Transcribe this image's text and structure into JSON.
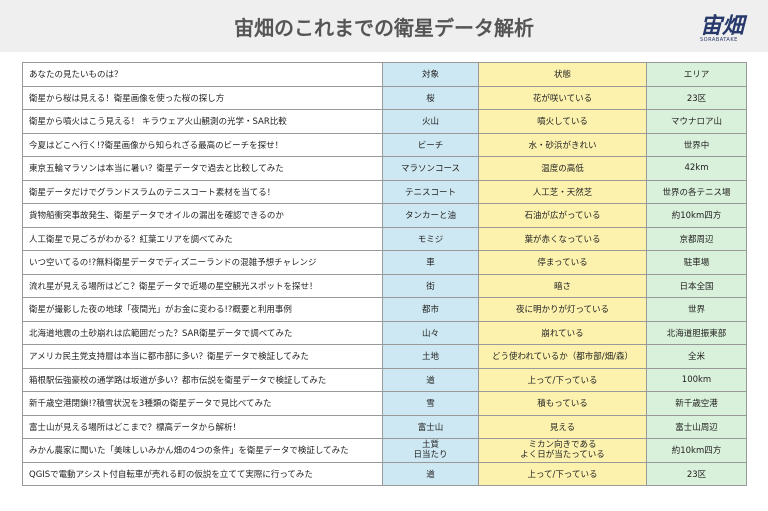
{
  "header": {
    "title": "宙畑のこれまでの衛星データ解析",
    "logo": "宙畑",
    "logo_sub": "SORABATAKE"
  },
  "table": {
    "columns": [
      "あなたの見たいものは？",
      "対象",
      "状態",
      "エリア"
    ],
    "rows": [
      [
        "衛星から桜は見える！衛星画像を使った桜の探し方",
        "桜",
        "花が咲いている",
        "23区"
      ],
      [
        "衛星から噴火はこう見える！ キラウェア火山観測の光学・SAR比較",
        "火山",
        "噴火している",
        "マウナロア山"
      ],
      [
        "今夏はどこへ行く!?衛星画像から知られざる最高のビーチを探せ！",
        "ビーチ",
        "水・砂浜がきれい",
        "世界中"
      ],
      [
        "東京五輪マラソンは本当に暑い？衛星データで過去と比較してみた",
        "マラソンコース",
        "温度の高低",
        "42km"
      ],
      [
        "衛星データだけでグランドスラムのテニスコート素材を当てる！",
        "テニスコート",
        "人工芝・天然芝",
        "世界の各テニス場"
      ],
      [
        "貨物船衝突事故発生、衛星データでオイルの漏出を確認できるのか",
        "タンカーと油",
        "石油が広がっている",
        "約10km四方"
      ],
      [
        "人工衛星で見ごろがわかる？紅葉エリアを調べてみた",
        "モミジ",
        "葉が赤くなっている",
        "京都周辺"
      ],
      [
        "いつ空いてるの!?無料衛星データでディズニーランドの混雑予想チャレンジ",
        "車",
        "停まっている",
        "駐車場"
      ],
      [
        "流れ星が見える場所はどこ？衛星データで近場の星空観光スポットを探せ！",
        "街",
        "暗さ",
        "日本全国"
      ],
      [
        "衛星が撮影した夜の地球「夜間光」がお金に変わる!?概要と利用事例",
        "都市",
        "夜に明かりが灯っている",
        "世界"
      ],
      [
        "北海道地震の土砂崩れは広範囲だった？SAR衛星データで調べてみた",
        "山々",
        "崩れている",
        "北海道胆振東部"
      ],
      [
        "アメリカ民主党支持層は本当に都市部に多い？衛星データで検証してみた",
        "土地",
        "どう使われているか（都市部/畑/森）",
        "全米"
      ],
      [
        "箱根駅伝強豪校の通学路は坂道が多い？都市伝説を衛星データで検証してみた",
        "道",
        "上って/下っている",
        "100km"
      ],
      [
        "新千歳空港閉鎖!?積雪状況を3種類の衛星データで見比べてみた",
        "雪",
        "積もっている",
        "新千歳空港"
      ],
      [
        "富士山が見える場所はどこまで？標高データから解析！",
        "富士山",
        "見える",
        "富士山周辺"
      ],
      [
        "みかん農家に聞いた「美味しいみかん畑の4つの条件」を衛星データで検証してみた",
        [
          "土質",
          "日当たり"
        ],
        [
          "ミカン向きである",
          "よく日が当たっている"
        ],
        "約10km四方"
      ],
      [
        "QGISで電動アシスト付自転車が売れる町の仮説を立てて実際に行ってみた",
        "道",
        "上って/下っている",
        "23区"
      ]
    ]
  }
}
